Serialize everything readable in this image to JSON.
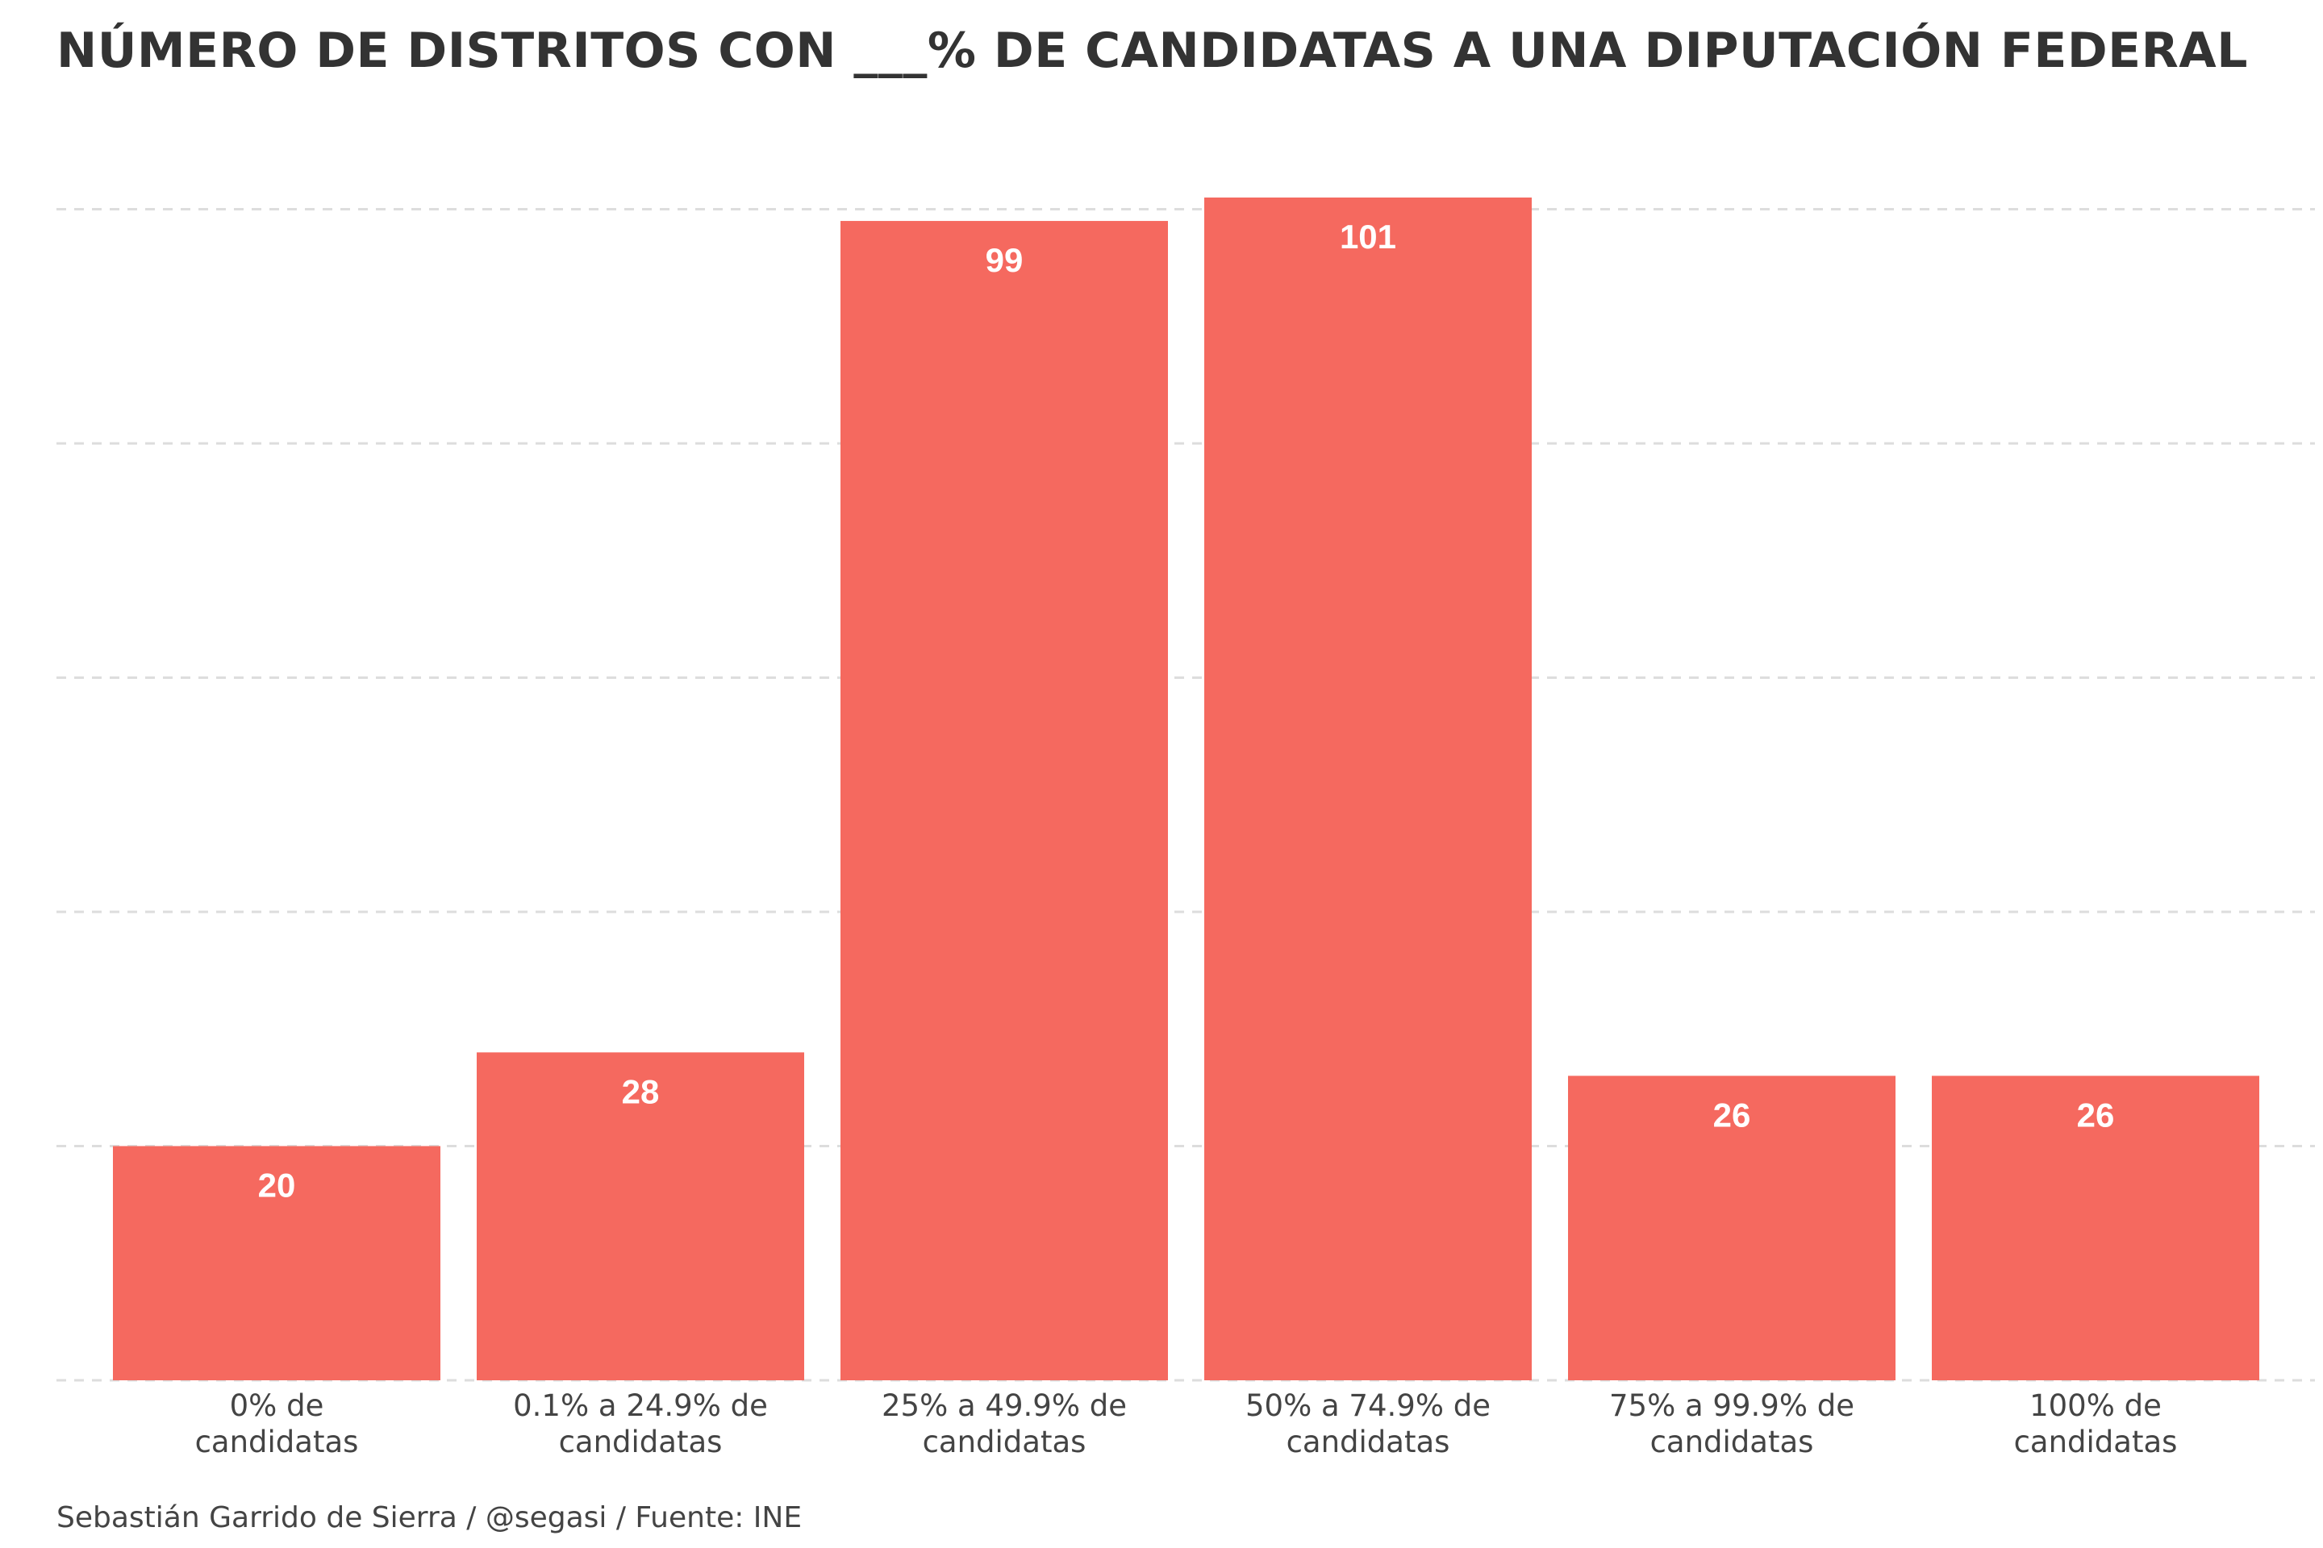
{
  "title": "NÚMERO DE DISTRITOS CON ___% DE CANDIDATAS A UNA DIPUTACIÓN FEDERAL",
  "caption": "Sebastián Garrido de Sierra / @segasi / Fuente: INE",
  "chart_data": {
    "type": "bar",
    "title": "NÚMERO DE DISTRITOS CON ___% DE CANDIDATAS A UNA DIPUTACIÓN FEDERAL",
    "xlabel": "",
    "ylabel": "",
    "categories": [
      [
        "0% de",
        "candidatas"
      ],
      [
        "0.1% a 24.9% de",
        "candidatas"
      ],
      [
        "25% a 49.9% de",
        "candidatas"
      ],
      [
        "50% a 74.9% de",
        "candidatas"
      ],
      [
        "75% a 99.9% de",
        "candidatas"
      ],
      [
        "100% de",
        "candidatas"
      ]
    ],
    "values": [
      20,
      28,
      99,
      101,
      26,
      26
    ],
    "ylim": [
      0,
      101
    ],
    "gridlines_y": [
      0,
      20,
      40,
      60,
      80,
      100
    ],
    "y_tick_labels_shown": false,
    "grid": "horizontal dashed",
    "bar_color": "#f5695f",
    "label_color": "#ffffff"
  }
}
